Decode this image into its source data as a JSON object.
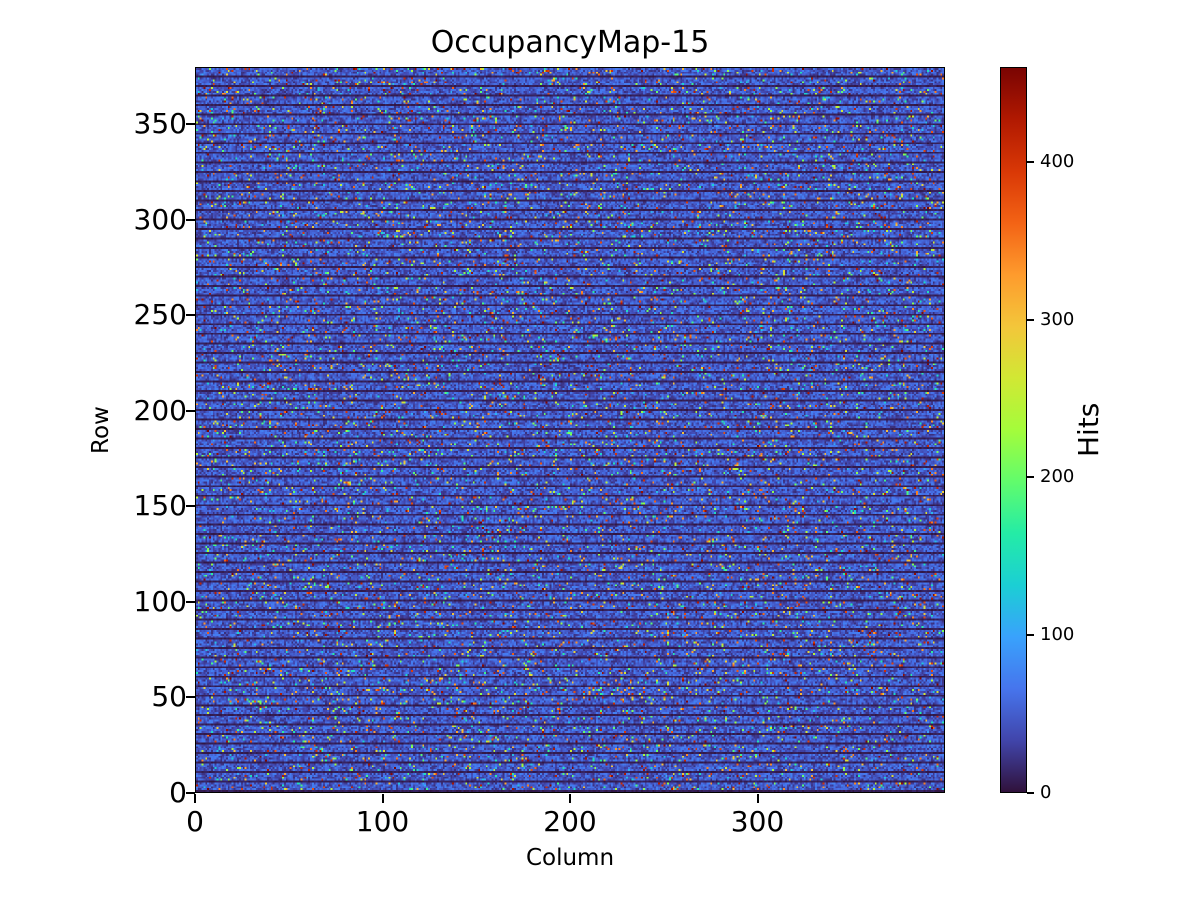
{
  "chart_data": {
    "type": "heatmap",
    "title": "OccupancyMap-15",
    "xlabel": "Column",
    "ylabel": "Row",
    "colorbar_label": "Hits",
    "n_cols": 400,
    "n_rows": 380,
    "xlim": [
      0,
      400
    ],
    "ylim": [
      0,
      380
    ],
    "vmin": 0,
    "vmax": 460,
    "x_ticks": [
      0,
      100,
      200,
      300
    ],
    "y_ticks": [
      0,
      50,
      100,
      150,
      200,
      250,
      300,
      350
    ],
    "colorbar_ticks": [
      0,
      100,
      200,
      300,
      400
    ],
    "grid": false,
    "legend": false,
    "colormap": "turbo",
    "colormap_anchors": [
      "#30123b",
      "#4145ab",
      "#4675ed",
      "#39a2fc",
      "#1bcfd4",
      "#24eca6",
      "#61fc6c",
      "#a4fc3b",
      "#d1e834",
      "#f3c63a",
      "#fe9b2d",
      "#f36315",
      "#d93806",
      "#b11901",
      "#7a0402"
    ],
    "pattern": {
      "description": "Dense noisy occupancy map: near-zero dark separator line every 5th row, baseline occupancy ~18-75 hits (blue), sparse hot speckles 100-460 hits (cyan/green/yellow/red) scattered uniformly across all columns.",
      "stripe_period_rows": 5,
      "baseline_hit_range": [
        18,
        75
      ],
      "speckle_probability": 0.07,
      "speckle_hit_range": [
        100,
        460
      ]
    }
  }
}
